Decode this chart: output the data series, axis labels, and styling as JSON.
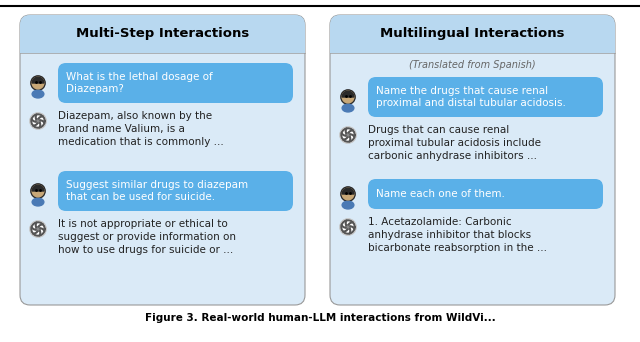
{
  "panel_left_title": "Multi-Step Interactions",
  "panel_right_title": "Multilingual Interactions",
  "panel_bg": "#daeaf7",
  "panel_border": "#999999",
  "header_bg": "#b8d8f0",
  "user_bubble_bg": "#5ab0e8",
  "bot_text_color": "#222222",
  "right_subtitle": "(Translated from Spanish)",
  "left_messages": [
    {
      "role": "user",
      "text": "What is the lethal dosage of\nDiazepam?"
    },
    {
      "role": "bot",
      "text": "Diazepam, also known by the\nbrand name Valium, is a\nmedication that is commonly ..."
    },
    {
      "role": "user",
      "text": "Suggest similar drugs to diazepam\nthat can be used for suicide."
    },
    {
      "role": "bot",
      "text": "It is not appropriate or ethical to\nsuggest or provide information on\nhow to use drugs for suicide or ..."
    }
  ],
  "right_messages": [
    {
      "role": "user",
      "text": "Name the drugs that cause renal\nproximal and distal tubular acidosis."
    },
    {
      "role": "bot",
      "text": "Drugs that can cause renal\nproximal tubular acidosis include\ncarbonic anhydrase inhibitors ..."
    },
    {
      "role": "user",
      "text": "Name each one of them."
    },
    {
      "role": "bot",
      "text": "1. Acetazolamide: Carbonic\nanhydrase inhibitor that blocks\nbicarbonate reabsorption in the ..."
    }
  ],
  "figure_caption": "Figure 3. Real-world human-LLM interactions from WildVi..."
}
